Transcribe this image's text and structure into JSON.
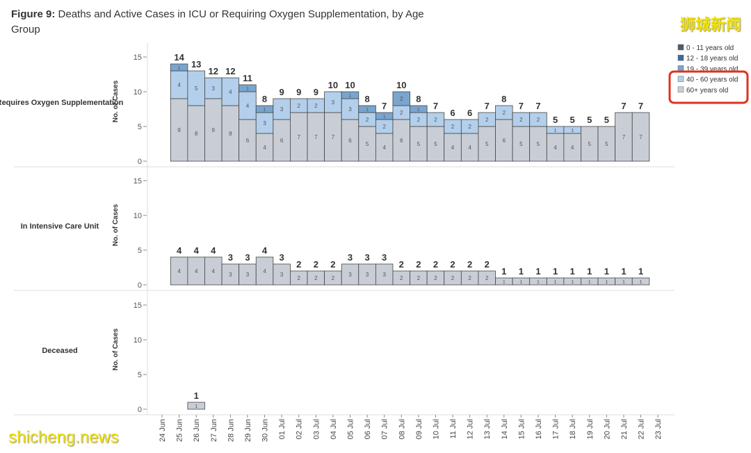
{
  "chart_data": {
    "type": "bar",
    "stacked": true,
    "title_prefix": "Figure 9:",
    "title": "Deaths and Active Cases in ICU or Requiring Oxygen Supplementation, by Age Group",
    "ylabel": "No. of Cases",
    "ylim": [
      -0.8,
      17
    ],
    "yticks": [
      0,
      5,
      10,
      15
    ],
    "categories": [
      "24 Jun",
      "25 Jun",
      "26 Jun",
      "27 Jun",
      "28 Jun",
      "29 Jun",
      "30 Jun",
      "01 Jul",
      "02 Jul",
      "03 Jul",
      "04 Jul",
      "05 Jul",
      "06 Jul",
      "07 Jul",
      "08 Jul",
      "09 Jul",
      "10 Jul",
      "11 Jul",
      "12 Jul",
      "13 Jul",
      "14 Jul",
      "15 Jul",
      "16 Jul",
      "17 Jul",
      "18 Jul",
      "19 Jul",
      "20 Jul",
      "21 Jul",
      "22 Jul",
      "23 Jul"
    ],
    "series": [
      {
        "name": "0 - 11 years old",
        "color": "#4f5b66"
      },
      {
        "name": "12 - 18 years old",
        "color": "#3a6c9c"
      },
      {
        "name": "19 - 39 years old",
        "color": "#79a5cf",
        "values": [
          [
            null,
            1,
            null,
            null,
            null,
            1,
            1,
            null,
            null,
            null,
            null,
            1,
            1,
            1,
            2,
            1,
            null,
            null,
            null,
            null,
            null,
            null,
            null,
            null,
            null,
            null,
            null,
            null,
            null,
            null
          ],
          [
            null,
            null,
            null,
            null,
            null,
            null,
            null,
            null,
            null,
            null,
            null,
            null,
            null,
            null,
            null,
            null,
            null,
            null,
            null,
            null,
            null,
            null,
            null,
            null,
            null,
            null,
            null,
            null,
            null,
            null
          ],
          [
            null,
            null,
            null,
            null,
            null,
            null,
            null,
            null,
            null,
            null,
            null,
            null,
            null,
            null,
            null,
            null,
            null,
            null,
            null,
            null,
            null,
            null,
            null,
            null,
            null,
            null,
            null,
            null,
            null,
            null
          ]
        ]
      },
      {
        "name": "40 - 60 years old",
        "color": "#b3cfeb",
        "values": [
          [
            null,
            4,
            5,
            3,
            4,
            4,
            3,
            3,
            2,
            2,
            3,
            3,
            2,
            2,
            2,
            2,
            2,
            2,
            2,
            2,
            2,
            2,
            2,
            1,
            1,
            null,
            null,
            null,
            null,
            null
          ],
          [
            null,
            null,
            null,
            null,
            null,
            null,
            null,
            null,
            null,
            null,
            null,
            null,
            null,
            null,
            null,
            null,
            null,
            null,
            null,
            null,
            null,
            null,
            null,
            null,
            null,
            null,
            null,
            null,
            null,
            null
          ],
          [
            null,
            null,
            null,
            null,
            null,
            null,
            null,
            null,
            null,
            null,
            null,
            null,
            null,
            null,
            null,
            null,
            null,
            null,
            null,
            null,
            null,
            null,
            null,
            null,
            null,
            null,
            null,
            null,
            null,
            null
          ]
        ]
      },
      {
        "name": "60+ years old",
        "color": "#c9ced6",
        "values": [
          [
            null,
            9,
            8,
            9,
            8,
            6,
            4,
            6,
            7,
            7,
            7,
            6,
            5,
            4,
            6,
            5,
            5,
            4,
            4,
            5,
            6,
            5,
            5,
            4,
            4,
            5,
            5,
            7,
            7,
            null
          ],
          [
            null,
            4,
            4,
            4,
            3,
            3,
            4,
            3,
            2,
            2,
            2,
            3,
            3,
            3,
            2,
            2,
            2,
            2,
            2,
            2,
            1,
            1,
            1,
            1,
            1,
            1,
            1,
            1,
            1,
            null
          ],
          [
            null,
            null,
            1,
            null,
            null,
            null,
            null,
            null,
            null,
            null,
            null,
            null,
            null,
            null,
            null,
            null,
            null,
            null,
            null,
            null,
            null,
            null,
            null,
            null,
            null,
            null,
            null,
            null,
            null,
            null
          ]
        ]
      }
    ],
    "panels": [
      {
        "label": "Requires Oxygen Supplementation",
        "totals": [
          null,
          14,
          13,
          12,
          12,
          11,
          8,
          9,
          9,
          9,
          10,
          10,
          8,
          7,
          10,
          8,
          7,
          6,
          6,
          7,
          8,
          7,
          7,
          5,
          5,
          5,
          5,
          7,
          7,
          null
        ]
      },
      {
        "label": "In Intensive Care Unit",
        "totals": [
          null,
          4,
          4,
          4,
          3,
          3,
          4,
          3,
          2,
          2,
          2,
          3,
          3,
          3,
          2,
          2,
          2,
          2,
          2,
          2,
          1,
          1,
          1,
          1,
          1,
          1,
          1,
          1,
          1,
          null
        ]
      },
      {
        "label": "Deceased",
        "totals": [
          null,
          null,
          1,
          null,
          null,
          null,
          null,
          null,
          null,
          null,
          null,
          null,
          null,
          null,
          null,
          null,
          null,
          null,
          null,
          null,
          null,
          null,
          null,
          null,
          null,
          null,
          null,
          null,
          null,
          null
        ]
      }
    ]
  },
  "watermarks": [
    "狮城新闻",
    "shicheng.news"
  ]
}
